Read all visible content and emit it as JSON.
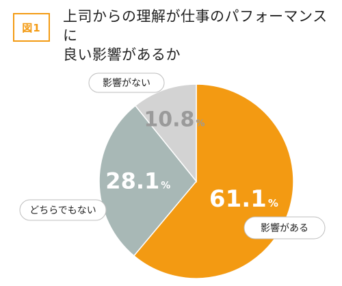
{
  "figure_label": "図1",
  "title_lines": [
    "上司からの理解が仕事のパフォーマンスに",
    "良い影響があるか"
  ],
  "chart_data": {
    "type": "pie",
    "title": "上司からの理解が仕事のパフォーマンスに良い影響があるか",
    "unit": "%",
    "slices": [
      {
        "label": "影響がある",
        "value": 61.1,
        "color": "#f39a12"
      },
      {
        "label": "どちらでもない",
        "value": 28.1,
        "color": "#a8b8b6"
      },
      {
        "label": "影響がない",
        "value": 10.8,
        "color": "#d3d3d3"
      }
    ]
  }
}
